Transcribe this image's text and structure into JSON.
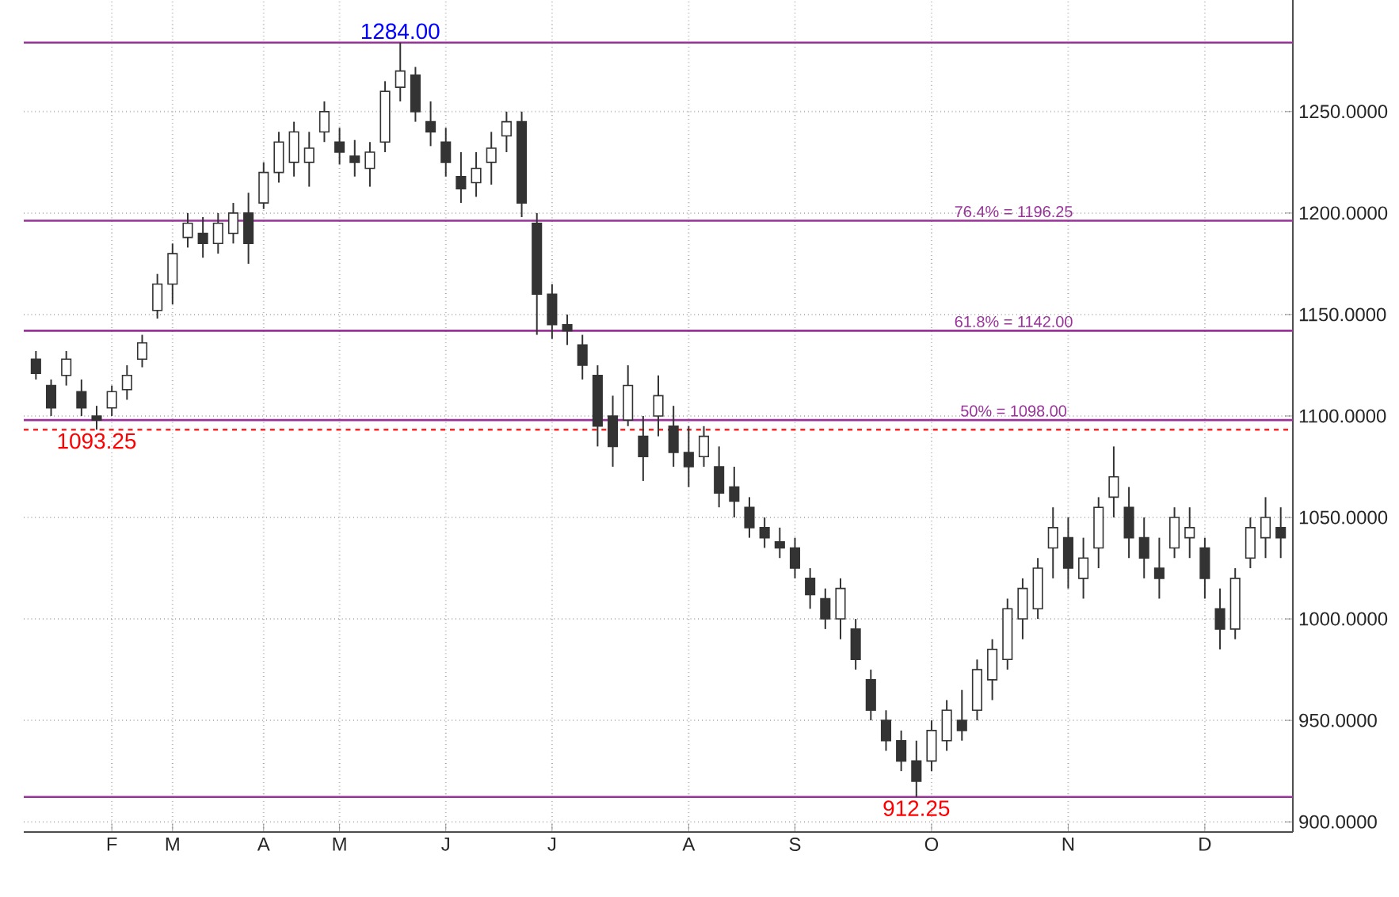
{
  "chart_data": {
    "type": "candlestick",
    "color": "#333333",
    "categories": [
      null,
      null,
      null,
      null,
      null,
      "F",
      null,
      null,
      null,
      "M",
      null,
      null,
      null,
      null,
      null,
      "A",
      null,
      null,
      null,
      null,
      "M",
      null,
      null,
      null,
      null,
      null,
      null,
      "J",
      null,
      null,
      null,
      null,
      null,
      null,
      "J",
      null,
      null,
      null,
      null,
      null,
      null,
      null,
      null,
      "A",
      null,
      null,
      null,
      null,
      null,
      null,
      "S",
      null,
      null,
      null,
      null,
      null,
      null,
      null,
      null,
      "O",
      null,
      null,
      null,
      null,
      null,
      null,
      null,
      null,
      "N",
      null,
      null,
      null,
      null,
      null,
      null,
      null,
      null,
      "D",
      null,
      null,
      null,
      null,
      null
    ],
    "ohlc": [
      [
        1128,
        1132,
        1118,
        1121
      ],
      [
        1115,
        1118,
        1100,
        1104
      ],
      [
        1120,
        1132,
        1115,
        1128
      ],
      [
        1112,
        1118,
        1100,
        1104
      ],
      [
        1100,
        1105,
        1093.25,
        1098
      ],
      [
        1104,
        1115,
        1100,
        1112
      ],
      [
        1113,
        1125,
        1108,
        1120
      ],
      [
        1128,
        1140,
        1124,
        1136
      ],
      [
        1152,
        1170,
        1148,
        1165
      ],
      [
        1165,
        1185,
        1155,
        1180
      ],
      [
        1188,
        1200,
        1183,
        1195
      ],
      [
        1190,
        1198,
        1178,
        1185
      ],
      [
        1185,
        1200,
        1180,
        1195
      ],
      [
        1190,
        1205,
        1185,
        1200
      ],
      [
        1200,
        1210,
        1175,
        1185
      ],
      [
        1205,
        1225,
        1202,
        1220
      ],
      [
        1220,
        1240,
        1215,
        1235
      ],
      [
        1225,
        1245,
        1218,
        1240
      ],
      [
        1225,
        1240,
        1213,
        1232
      ],
      [
        1240,
        1255,
        1235,
        1250
      ],
      [
        1235,
        1242,
        1224,
        1230
      ],
      [
        1228,
        1236,
        1218,
        1225
      ],
      [
        1222,
        1235,
        1213,
        1230
      ],
      [
        1235,
        1265,
        1230,
        1260
      ],
      [
        1262,
        1284,
        1255,
        1270
      ],
      [
        1268,
        1272,
        1245,
        1250
      ],
      [
        1245,
        1255,
        1233,
        1240
      ],
      [
        1235,
        1242,
        1218,
        1225
      ],
      [
        1218,
        1230,
        1205,
        1212
      ],
      [
        1215,
        1230,
        1208,
        1222
      ],
      [
        1225,
        1240,
        1214,
        1232
      ],
      [
        1238,
        1250,
        1230,
        1245
      ],
      [
        1245,
        1250,
        1198,
        1205
      ],
      [
        1195,
        1200,
        1140,
        1160
      ],
      [
        1160,
        1165,
        1138,
        1145
      ],
      [
        1145,
        1150,
        1135,
        1142
      ],
      [
        1135,
        1140,
        1118,
        1125
      ],
      [
        1120,
        1125,
        1085,
        1095
      ],
      [
        1100,
        1110,
        1075,
        1085
      ],
      [
        1098,
        1125,
        1095,
        1115
      ],
      [
        1090,
        1100,
        1068,
        1080
      ],
      [
        1100,
        1120,
        1090,
        1110
      ],
      [
        1095,
        1105,
        1075,
        1082
      ],
      [
        1082,
        1095,
        1065,
        1075
      ],
      [
        1080,
        1095,
        1075,
        1090
      ],
      [
        1075,
        1085,
        1055,
        1062
      ],
      [
        1065,
        1075,
        1050,
        1058
      ],
      [
        1055,
        1060,
        1040,
        1045
      ],
      [
        1045,
        1050,
        1035,
        1040
      ],
      [
        1038,
        1045,
        1030,
        1035
      ],
      [
        1035,
        1040,
        1020,
        1025
      ],
      [
        1020,
        1025,
        1005,
        1012
      ],
      [
        1010,
        1015,
        995,
        1000
      ],
      [
        1000,
        1020,
        990,
        1015
      ],
      [
        995,
        1000,
        975,
        980
      ],
      [
        970,
        975,
        950,
        955
      ],
      [
        950,
        955,
        935,
        940
      ],
      [
        940,
        945,
        925,
        930
      ],
      [
        930,
        940,
        912.25,
        920
      ],
      [
        930,
        950,
        925,
        945
      ],
      [
        940,
        960,
        935,
        955
      ],
      [
        950,
        965,
        940,
        945
      ],
      [
        955,
        980,
        950,
        975
      ],
      [
        970,
        990,
        960,
        985
      ],
      [
        980,
        1010,
        975,
        1005
      ],
      [
        1000,
        1020,
        990,
        1015
      ],
      [
        1005,
        1030,
        1000,
        1025
      ],
      [
        1035,
        1055,
        1020,
        1045
      ],
      [
        1040,
        1050,
        1015,
        1025
      ],
      [
        1020,
        1040,
        1010,
        1030
      ],
      [
        1035,
        1060,
        1025,
        1055
      ],
      [
        1060,
        1085,
        1050,
        1070
      ],
      [
        1055,
        1065,
        1030,
        1040
      ],
      [
        1040,
        1050,
        1020,
        1030
      ],
      [
        1025,
        1040,
        1010,
        1020
      ],
      [
        1035,
        1055,
        1030,
        1050
      ],
      [
        1040,
        1055,
        1030,
        1045
      ],
      [
        1035,
        1040,
        1010,
        1020
      ],
      [
        1005,
        1015,
        985,
        995
      ],
      [
        995,
        1025,
        990,
        1020
      ],
      [
        1030,
        1050,
        1025,
        1045
      ],
      [
        1040,
        1060,
        1030,
        1050
      ],
      [
        1045,
        1055,
        1030,
        1040
      ]
    ],
    "ylim": [
      895,
      1305
    ],
    "yticks": [
      {
        "value": 900,
        "label": "900.0000"
      },
      {
        "value": 950,
        "label": "950.0000"
      },
      {
        "value": 1000,
        "label": "1000.0000"
      },
      {
        "value": 1050,
        "label": "1050.0000"
      },
      {
        "value": 1100,
        "label": "1100.0000"
      },
      {
        "value": 1150,
        "label": "1150.0000"
      },
      {
        "value": 1200,
        "label": "1200.0000"
      },
      {
        "value": 1250,
        "label": "1250.0000"
      }
    ],
    "grid": true,
    "ref_lines": [
      {
        "axis": "y",
        "value": 1284,
        "label": null,
        "color": "#993399"
      },
      {
        "axis": "y",
        "value": 1196.25,
        "label": "76.4% = 1196.25",
        "color": "#993399"
      },
      {
        "axis": "y",
        "value": 1142,
        "label": "61.8% = 1142.00",
        "color": "#993399"
      },
      {
        "axis": "y",
        "value": 1098,
        "label": "50% = 1098.00",
        "color": "#993399"
      },
      {
        "axis": "y",
        "value": 912.25,
        "label": null,
        "color": "#993399"
      },
      {
        "axis": "y",
        "value": 1093.25,
        "label": null,
        "color": "#ff2222",
        "line_style": "dashed"
      }
    ],
    "annotations": [
      {
        "text": "1284.00",
        "y": 1284
      },
      {
        "text": "1093.25",
        "y": 1093.25
      },
      {
        "text": "912.25",
        "y": 912.25
      }
    ]
  }
}
